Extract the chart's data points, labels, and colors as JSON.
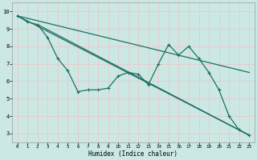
{
  "xlabel": "Humidex (Indice chaleur)",
  "xlim": [
    -0.5,
    23.5
  ],
  "ylim": [
    2.5,
    10.5
  ],
  "xticks": [
    0,
    1,
    2,
    3,
    4,
    5,
    6,
    7,
    8,
    9,
    10,
    11,
    12,
    13,
    14,
    15,
    16,
    17,
    18,
    19,
    20,
    21,
    22,
    23
  ],
  "yticks": [
    3,
    4,
    5,
    6,
    7,
    8,
    9,
    10
  ],
  "bg_color": "#cce8e4",
  "line_color": "#1a7060",
  "grid_color": "#e8c8c8",
  "zigzag_x": [
    0,
    1,
    2,
    3,
    4,
    5,
    6,
    7,
    8,
    9,
    10,
    11,
    12,
    13,
    14,
    15,
    16,
    17,
    18,
    19,
    20,
    21,
    22,
    23
  ],
  "zigzag_y": [
    9.75,
    9.4,
    9.25,
    8.5,
    7.3,
    6.6,
    5.4,
    5.5,
    5.5,
    5.6,
    6.3,
    6.5,
    6.4,
    5.8,
    7.0,
    8.1,
    7.5,
    8.0,
    7.3,
    6.5,
    5.5,
    4.0,
    3.2,
    2.9
  ],
  "upper_line_x": [
    0,
    23
  ],
  "upper_line_y": [
    9.75,
    6.5
  ],
  "lower_line_x": [
    0,
    23
  ],
  "lower_line_y": [
    9.75,
    2.9
  ],
  "mid_line_x": [
    2,
    23
  ],
  "mid_line_y": [
    9.25,
    2.9
  ]
}
